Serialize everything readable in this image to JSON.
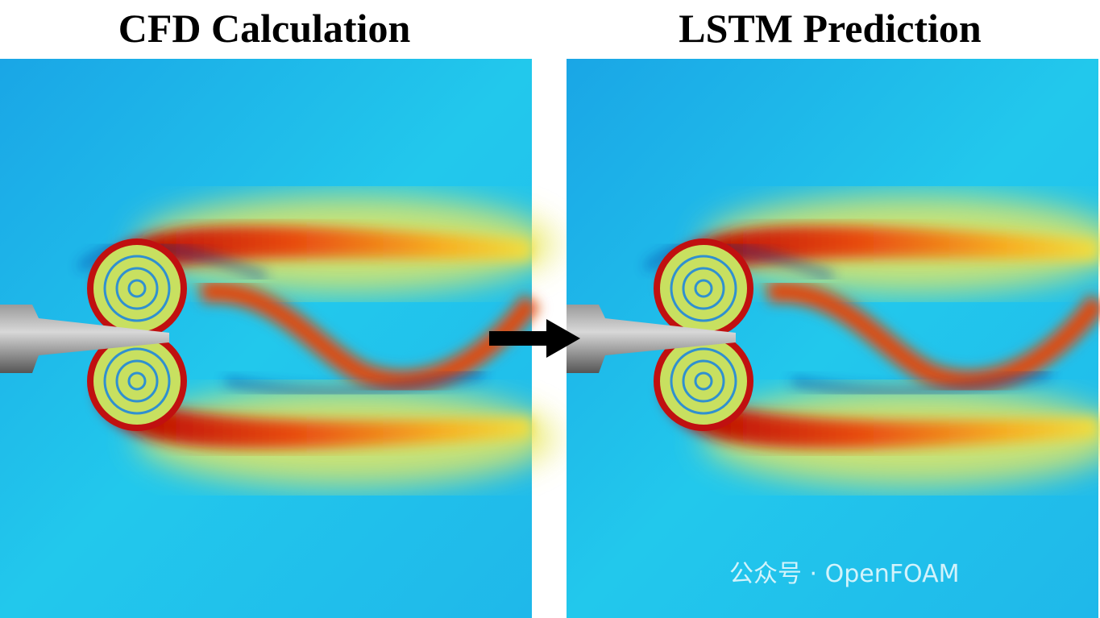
{
  "panels": [
    {
      "title": "CFD Calculation"
    },
    {
      "title": "LSTM Prediction"
    }
  ],
  "watermark": "公众号 · OpenFOAM"
}
